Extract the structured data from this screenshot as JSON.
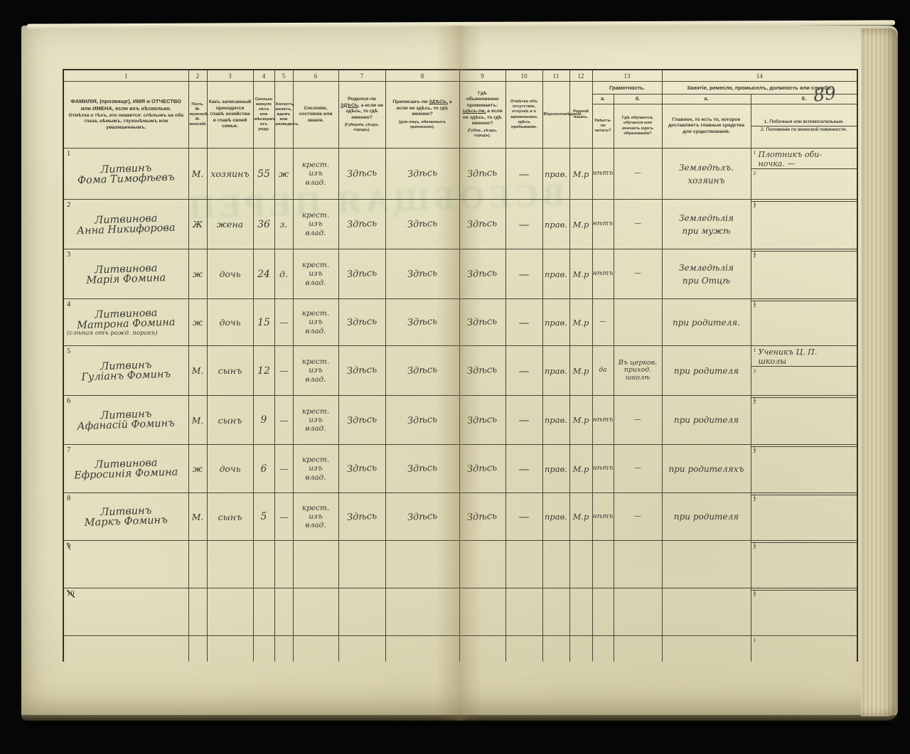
{
  "page_number": "89",
  "bleedthrough": "ВСЕОБЩАЯ ПЕРЕП",
  "header": {
    "c1": {
      "num": "1",
      "title": "ФАМИЛІЯ, (прозвище), ИМЯ и ОТЧЕСТВО или ИМЕНА, если ихъ нѣсколько.",
      "subtitle": "Отмѣтка о тѣхъ, кто окажется: слѣпымъ на оба глаза, нѣмымъ, глухонѣмымъ или умалишеннымъ."
    },
    "c2": {
      "num": "2",
      "title": "Полъ. М-мужской. Ж-женскій."
    },
    "c3": {
      "num": "3",
      "title": "Какъ записанный приходится главѣ хозяйства и главѣ своей семьи."
    },
    "c4": {
      "num": "4",
      "title": "Сколько минуло лѣтъ или мѣсяцевъ отъ роду."
    },
    "c5": {
      "num": "5",
      "title": "Холостъ, женатъ, вдовъ или разведенъ."
    },
    "c6": {
      "num": "6",
      "title": "Сословіе, состояніе или званіе."
    },
    "c7": {
      "num": "7",
      "pre": "Родился-ли ",
      "here": "ЗДѢСЬ,",
      "rest": " а если не здѣсь, то гдѣ именно?",
      "note": "(Губернія, уѣздъ, городъ)."
    },
    "c8": {
      "num": "8",
      "pre": "Приписанъ-ли ",
      "here": "ЗДѢСЬ,",
      "rest": " а если не здѣсь, то гдѣ именно?",
      "note": "(для лицъ, обязанныхъ припискою)."
    },
    "c9": {
      "num": "9",
      "pre": "Гдѣ обыкновенно проживаетъ: ",
      "here": "здѣсь-ли,",
      "rest": " а если не здѣсь, то гдѣ именно?",
      "note": "(Губер., уѣздъ, городъ)."
    },
    "c10": {
      "num": "10",
      "title": "Отмѣтка объ отсутствіи, отлучкѣ и о временномъ здѣсь пребываніи."
    },
    "c11": {
      "num": "11",
      "title": "Вѣроисповѣданіе."
    },
    "c12": {
      "num": "12",
      "title": "Родной языкъ."
    },
    "c13": {
      "num": "13",
      "title": "Грамотность.",
      "a": "а.",
      "b": "б.",
      "a_text": "Умѣетъ-ли читать?",
      "b_text": "Гдѣ обучается, обучался или кончилъ курсъ образованія?"
    },
    "c14": {
      "num": "14",
      "title": "Занятіе, ремесло, промыселъ, должность или служба.",
      "a": "а.",
      "b": "б.",
      "a_text": "Главное, то есть то, которое доставляетъ главныя средства для существованія.",
      "b_text_1": "1. Побочныя или вспомогательныя.",
      "b_text_2": "2. Положеніе по воинской повинности."
    }
  },
  "rows": [
    {
      "num": "1",
      "struck": false,
      "name1": "Литвинъ",
      "name2": "Фома Тимофѣевъ",
      "note": "",
      "sex": "М.",
      "relation": "хозяинъ",
      "age": "55",
      "marital": "ж",
      "estate": "крест.\nизъ\nвлад.",
      "born": "Здѣсь",
      "registered": "Здѣсь",
      "resides": "Здѣсь",
      "absence": "—",
      "religion": "прав.",
      "language": "М.р",
      "reads": "нѣтъ",
      "educated": "—",
      "occupation": "Земледѣлъ.\nхозяинъ",
      "side1": "Плотникъ оби-\nночка. —",
      "side2": ""
    },
    {
      "num": "2",
      "struck": false,
      "name1": "Литвинова",
      "name2": "Анна Никифорова",
      "note": "",
      "sex": "Ж",
      "relation": "жена",
      "age": "36",
      "marital": "з.",
      "estate": "крест.\nизъ\nвлад.",
      "born": "Здѣсь",
      "registered": "Здѣсь",
      "resides": "Здѣсь",
      "absence": "—",
      "religion": "прав.",
      "language": "М.р",
      "reads": "нѣтъ",
      "educated": "—",
      "occupation": "Земледѣлія\nпри мужѣ",
      "side1": "",
      "side2": ""
    },
    {
      "num": "3",
      "struck": false,
      "name1": "Литвинова",
      "name2": "Марія Фомина",
      "note": "",
      "sex": "ж",
      "relation": "дочь",
      "age": "24",
      "marital": "д.",
      "estate": "крест.\nизъ\nвлад.",
      "born": "Здѣсь",
      "registered": "Здѣсь",
      "resides": "Здѣсь",
      "absence": "—",
      "religion": "прав.",
      "language": "М.р",
      "reads": "нѣтъ",
      "educated": "—",
      "occupation": "Земледѣлія\nпри Отцѣ",
      "side1": "",
      "side2": ""
    },
    {
      "num": "4",
      "struck": false,
      "name1": "Литвинова",
      "name2": "Матрона Фомина",
      "note": "(слѣпая отъ рожд. порокъ)",
      "sex": "ж",
      "relation": "дочь",
      "age": "15",
      "marital": "—",
      "estate": "крест.\nизъ\nвлад.",
      "born": "Здѣсь",
      "registered": "Здѣсь",
      "resides": "Здѣсь",
      "absence": "—",
      "religion": "прав.",
      "language": "М.р",
      "reads": "—",
      "educated": "",
      "occupation": "при родителя.",
      "side1": "",
      "side2": ""
    },
    {
      "num": "5",
      "struck": false,
      "name1": "Литвинъ",
      "name2": "Гуліанъ Фоминъ",
      "note": "",
      "sex": "М.",
      "relation": "сынъ",
      "age": "12",
      "marital": "—",
      "estate": "крест.\nизъ\nвлад.",
      "born": "Здѣсь",
      "registered": "Здѣсь",
      "resides": "Здѣсь",
      "absence": "—",
      "religion": "прав.",
      "language": "М.р",
      "reads": "да",
      "educated": "Въ церков.\nприход.\nшколѣ",
      "occupation": "при родителя",
      "side1": "Ученикъ Ц. П.\nшколы",
      "side2": ""
    },
    {
      "num": "6",
      "struck": false,
      "name1": "Литвинъ",
      "name2": "Афанасій Фоминъ",
      "note": "",
      "sex": "М.",
      "relation": "сынъ",
      "age": "9",
      "marital": "—",
      "estate": "крест.\nизъ\nвлад.",
      "born": "Здѣсь",
      "registered": "Здѣсь",
      "resides": "Здѣсь",
      "absence": "—",
      "religion": "прав.",
      "language": "М.р",
      "reads": "нѣтъ",
      "educated": "—",
      "occupation": "при родителя",
      "side1": "",
      "side2": ""
    },
    {
      "num": "7",
      "struck": false,
      "name1": "Литвинова",
      "name2": "Ефросинія Фомина",
      "note": "",
      "sex": "ж",
      "relation": "дочь",
      "age": "6",
      "marital": "—",
      "estate": "крест.\nизъ\nвлад.",
      "born": "Здѣсь",
      "registered": "Здѣсь",
      "resides": "Здѣсь",
      "absence": "—",
      "religion": "прав.",
      "language": "М.р",
      "reads": "нѣтъ",
      "educated": "—",
      "occupation": "при родителяхъ",
      "side1": "",
      "side2": ""
    },
    {
      "num": "8",
      "struck": false,
      "name1": "Литвинъ",
      "name2": "Маркъ Фоминъ",
      "note": "",
      "sex": "М.",
      "relation": "сынъ",
      "age": "5",
      "marital": "—",
      "estate": "крест.\nизъ\nвлад.",
      "born": "Здѣсь",
      "registered": "Здѣсь",
      "resides": "Здѣсь",
      "absence": "—",
      "religion": "прав.",
      "language": "М.р",
      "reads": "нѣтъ",
      "educated": "—",
      "occupation": "при родителя",
      "side1": "",
      "side2": ""
    },
    {
      "num": "9",
      "struck": true,
      "name1": "",
      "name2": "",
      "note": "",
      "sex": "",
      "relation": "",
      "age": "",
      "marital": "",
      "estate": "",
      "born": "",
      "registered": "",
      "resides": "",
      "absence": "",
      "religion": "",
      "language": "",
      "reads": "",
      "educated": "",
      "occupation": "",
      "side1": "",
      "side2": ""
    },
    {
      "num": "10",
      "struck": true,
      "name1": "",
      "name2": "",
      "note": "",
      "sex": "",
      "relation": "",
      "age": "",
      "marital": "",
      "estate": "",
      "born": "",
      "registered": "",
      "resides": "",
      "absence": "",
      "religion": "",
      "language": "",
      "reads": "",
      "educated": "",
      "occupation": "",
      "side1": "",
      "side2": ""
    }
  ]
}
